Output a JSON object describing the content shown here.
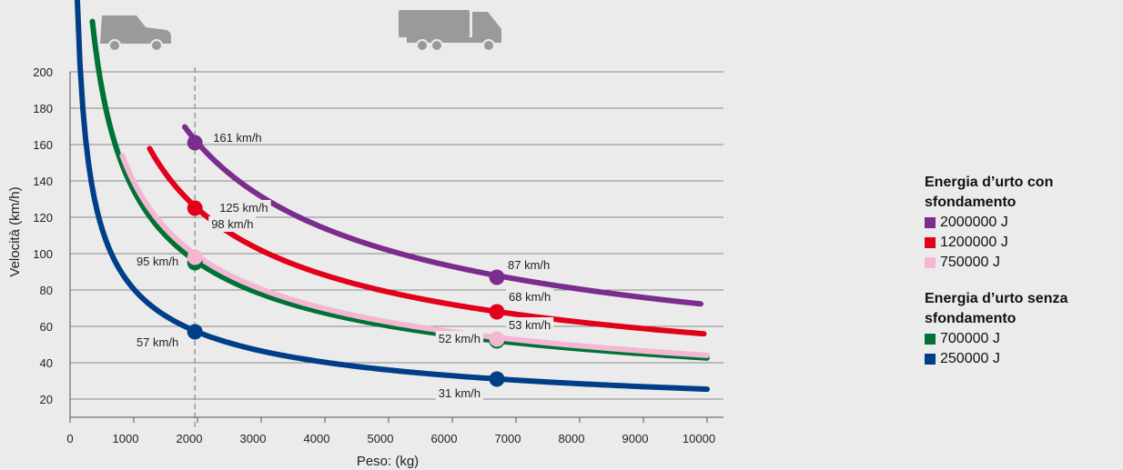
{
  "chart_data": {
    "type": "line",
    "xlabel": "Peso: (kg)",
    "ylabel": "Velocità (km/h)",
    "xlim": [
      0,
      10000
    ],
    "ylim": [
      10,
      200
    ],
    "xticks": [
      "0",
      "1000",
      "2000",
      "3000",
      "4000",
      "5000",
      "6000",
      "7000",
      "8000",
      "9000",
      "10000"
    ],
    "yticks": [
      "20",
      "40",
      "60",
      "80",
      "100",
      "120",
      "140",
      "160",
      "180",
      "200"
    ],
    "grid": "horizontal",
    "reference_line_x": 1960,
    "legend_groups": [
      {
        "title": "Energia d’urto con sfondamento",
        "series_indexes": [
          0,
          1,
          2
        ]
      },
      {
        "title": "Energia d’urto senza sfondamento",
        "series_indexes": [
          3,
          4
        ]
      }
    ],
    "series": [
      {
        "name": "2000000 J",
        "energy_j": 2000000,
        "color": "#7b2d8e",
        "x_start": 1800,
        "x_end": 9900,
        "markers": [
          {
            "x": 1960,
            "y": 161,
            "label": "161 km/h"
          },
          {
            "x": 6700,
            "y": 87,
            "label": "87 km/h"
          }
        ]
      },
      {
        "name": "1200000 J",
        "energy_j": 1200000,
        "color": "#e2001a",
        "x_start": 1250,
        "x_end": 9950,
        "markers": [
          {
            "x": 1960,
            "y": 125,
            "label": "125 km/h"
          },
          {
            "x": 6700,
            "y": 68,
            "label": "68 km/h"
          }
        ]
      },
      {
        "name": "750000 J",
        "energy_j": 750000,
        "color": "#f4b6d2",
        "x_start": 820,
        "x_end": 10000,
        "markers": [
          {
            "x": 1960,
            "y": 98,
            "label": "98 km/h"
          },
          {
            "x": 6700,
            "y": 53,
            "label": "53 km/h"
          }
        ]
      },
      {
        "name": "700000 J",
        "energy_j": 700000,
        "color": "#007236",
        "x_start": 350,
        "x_end": 10000,
        "markers": [
          {
            "x": 1960,
            "y": 95,
            "label": "95 km/h"
          },
          {
            "x": 6700,
            "y": 52,
            "label": "52 km/h"
          }
        ]
      },
      {
        "name": "250000 J",
        "energy_j": 250000,
        "color": "#003f87",
        "x_start": 110,
        "x_end": 10000,
        "markers": [
          {
            "x": 1960,
            "y": 57,
            "label": "57 km/h"
          },
          {
            "x": 6700,
            "y": 31,
            "label": "31 km/h"
          }
        ]
      }
    ]
  },
  "icons": {
    "car": {
      "name": "car-icon",
      "color": "#9a9a9a"
    },
    "truck": {
      "name": "truck-icon",
      "color": "#9a9a9a"
    }
  }
}
